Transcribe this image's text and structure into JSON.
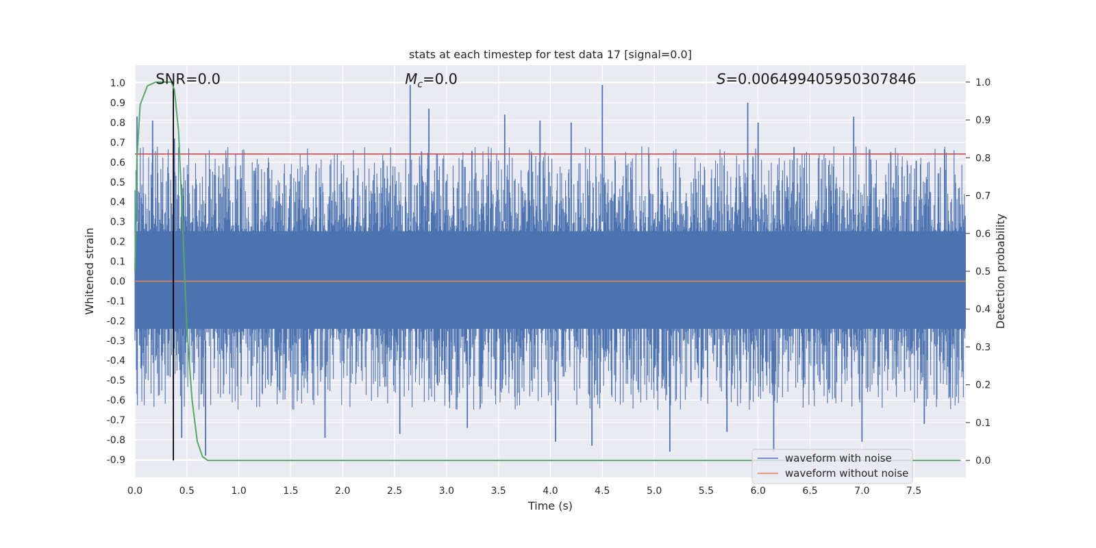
{
  "chart_data": {
    "type": "line",
    "title": "stats at each timestep for test data 17 [signal=0.0]",
    "xlabel": "Time (s)",
    "ylabel": "Whitened strain",
    "y2label": "Detection probability",
    "xlim": [
      0.0,
      8.0
    ],
    "ylim": [
      -0.99,
      1.09
    ],
    "y2lim": [
      -0.045,
      1.045
    ],
    "xticks": [
      0.0,
      0.5,
      1.0,
      1.5,
      2.0,
      2.5,
      3.0,
      3.5,
      4.0,
      4.5,
      5.0,
      5.5,
      6.0,
      6.5,
      7.0,
      7.5
    ],
    "xtick_labels": [
      "0.0",
      "0.5",
      "1.0",
      "1.5",
      "2.0",
      "2.5",
      "3.0",
      "3.5",
      "4.0",
      "4.5",
      "5.0",
      "5.5",
      "6.0",
      "6.5",
      "7.0",
      "7.5"
    ],
    "yticks": [
      1.0,
      0.9,
      0.8,
      0.7,
      0.6,
      0.5,
      0.4,
      0.3,
      0.2,
      0.1,
      0.0,
      -0.1,
      -0.2,
      -0.3,
      -0.4,
      -0.5,
      -0.6,
      -0.7,
      -0.8,
      -0.9
    ],
    "ytick_labels": [
      "1.0",
      "0.9",
      "0.8",
      "0.7",
      "0.6",
      "0.5",
      "0.4",
      "0.3",
      "0.2",
      "0.1",
      "0.0",
      "-0.1",
      "-0.2",
      "-0.3",
      "-0.4",
      "-0.5",
      "-0.6",
      "-0.7",
      "-0.8",
      "-0.9"
    ],
    "y2ticks": [
      1.0,
      0.9,
      0.8,
      0.7,
      0.6,
      0.5,
      0.4,
      0.3,
      0.2,
      0.1,
      0.0
    ],
    "y2tick_labels": [
      "1.0",
      "0.9",
      "0.8",
      "0.7",
      "0.6",
      "0.5",
      "0.4",
      "0.3",
      "0.2",
      "0.1",
      "0.0"
    ],
    "annotations": {
      "snr": {
        "label": "SNR",
        "value": "=0.0",
        "x": 0.2
      },
      "mc": {
        "label": "M",
        "subscript": "c",
        "value": "=0.0",
        "x": 2.6
      },
      "s": {
        "label": "S",
        "value": "=0.006499405950307846",
        "x": 5.6
      },
      "annotation_y": 1.02
    },
    "threshold": {
      "value": 0.81,
      "color": "#c44e52"
    },
    "peak_marker": {
      "x": 0.37,
      "color": "#000000"
    },
    "series": [
      {
        "name": "waveform with noise",
        "color": "#4c72b0",
        "description": "dense noisy strain, roughly symmetric about 0",
        "band_typical": [
          -0.4,
          0.42
        ],
        "peaks_positive": [
          {
            "x": 0.02,
            "y": 0.83
          },
          {
            "x": 0.17,
            "y": 0.81
          },
          {
            "x": 0.38,
            "y": 0.72
          },
          {
            "x": 2.65,
            "y": 0.99
          },
          {
            "x": 2.83,
            "y": 0.87
          },
          {
            "x": 3.56,
            "y": 0.84
          },
          {
            "x": 4.5,
            "y": 0.99
          },
          {
            "x": 5.9,
            "y": 0.9
          },
          {
            "x": 6.92,
            "y": 0.83
          },
          {
            "x": 3.9,
            "y": 0.81
          },
          {
            "x": 4.2,
            "y": 0.8
          },
          {
            "x": 6.0,
            "y": 0.8
          }
        ],
        "peaks_negative": [
          {
            "x": 0.45,
            "y": -0.79
          },
          {
            "x": 0.68,
            "y": -0.88
          },
          {
            "x": 1.83,
            "y": -0.79
          },
          {
            "x": 2.55,
            "y": -0.77
          },
          {
            "x": 4.05,
            "y": -0.81
          },
          {
            "x": 4.4,
            "y": -0.83
          },
          {
            "x": 5.15,
            "y": -0.86
          },
          {
            "x": 6.15,
            "y": -0.86
          },
          {
            "x": 7.0,
            "y": -0.81
          },
          {
            "x": 3.2,
            "y": -0.74
          },
          {
            "x": 5.7,
            "y": -0.76
          },
          {
            "x": 7.6,
            "y": -0.72
          }
        ]
      },
      {
        "name": "waveform without noise",
        "color": "#dd8452",
        "y_constant": 0.0
      },
      {
        "name": "detection probability",
        "color": "#55a868",
        "axis": "right",
        "x": [
          0.0,
          0.02,
          0.05,
          0.12,
          0.2,
          0.28,
          0.35,
          0.38,
          0.42,
          0.46,
          0.5,
          0.55,
          0.6,
          0.65,
          0.7,
          0.8,
          1.0,
          2.0,
          3.0,
          4.0,
          5.0,
          6.0,
          7.0,
          7.3,
          7.5,
          7.95
        ],
        "y": [
          0.5,
          0.8,
          0.94,
          0.99,
          1.0,
          1.0,
          1.0,
          0.98,
          0.87,
          0.62,
          0.35,
          0.16,
          0.05,
          0.01,
          0.0,
          0.0,
          0.0,
          0.0,
          0.0,
          0.0,
          0.0,
          0.0,
          0.0,
          0.0,
          0.0,
          0.0
        ]
      }
    ],
    "legend": {
      "placement": "lower-right",
      "entries": [
        {
          "label": "waveform with noise",
          "color": "#4c72b0"
        },
        {
          "label": "waveform without noise",
          "color": "#dd8452"
        }
      ]
    },
    "style": {
      "background": "#eaeaf2",
      "grid": true,
      "grid_color": "#ffffff"
    }
  }
}
